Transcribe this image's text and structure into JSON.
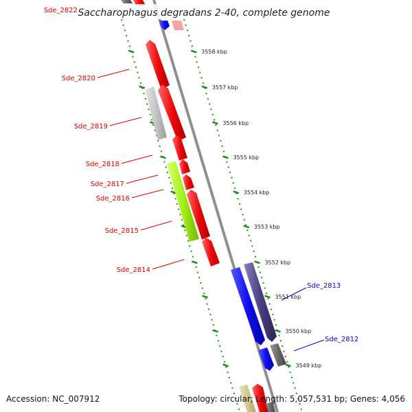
{
  "title": "Saccharophagus degradans 2-40, complete genome",
  "accession": "Accession: NC_007912",
  "topology": "Topology: circular; Length: 5,057,531 bp; Genes: 4,056",
  "colors": {
    "red": "#e8000b",
    "grey": "#c4c4c4",
    "green": "#a8f21a",
    "blue": "#1010ee",
    "navy": "#4a4080",
    "darkgrey": "#6a6a6a",
    "olive": "#cfc48a",
    "pink": "#f2a0a0",
    "lavender": "#c8c8f8",
    "backbone": "#8e8e8e",
    "ticks": "#1e8a1e",
    "label_red": "#d40000",
    "label_blue": "#0000c8"
  },
  "kbp_labels": [
    "3558 kbp",
    "3557 kbp",
    "3556 kbp",
    "3555 kbp",
    "3554 kbp",
    "3553 kbp",
    "3552 kbp",
    "3551 kbp",
    "3550 kbp",
    "3549 kbp"
  ],
  "genes": [
    {
      "label": "Sde_2822",
      "color": "red",
      "strand": "reverse"
    },
    {
      "label": "Sde_2820",
      "color": "red",
      "strand": "reverse"
    },
    {
      "label": "Sde_2819",
      "color": "grey",
      "strand": "reverse"
    },
    {
      "label": "Sde_2818",
      "color": "red",
      "strand": "reverse"
    },
    {
      "label": "Sde_2817",
      "color": "red",
      "strand": "reverse"
    },
    {
      "label": "Sde_2816",
      "color": "red",
      "strand": "reverse"
    },
    {
      "label": "Sde_2815",
      "color": "green",
      "strand": "reverse"
    },
    {
      "label": "Sde_2814",
      "color": "red",
      "strand": "reverse"
    },
    {
      "label": "Sde_2813",
      "color": "navy",
      "strand": "forward"
    },
    {
      "label": "Sde_2812",
      "color": "blue",
      "strand": "forward"
    }
  ]
}
